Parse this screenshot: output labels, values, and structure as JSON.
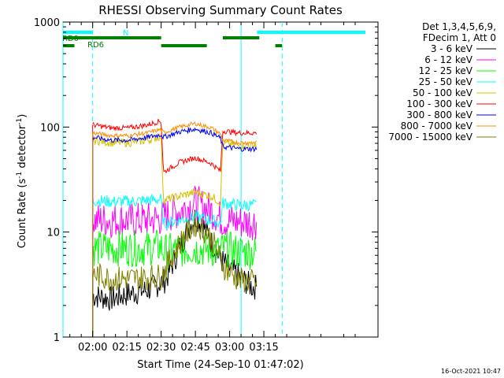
{
  "chart_data": {
    "type": "line",
    "title": "RHESSI Observing Summary Count Rates",
    "xlabel": "Start Time (24-Sep-10 01:47:02)",
    "ylabel_main": "Count Rate (s",
    "ylabel_sup1": "-1",
    "ylabel_mid": " detector",
    "ylabel_sup2": "-1",
    "ylabel_end": ")",
    "y_scale": "log",
    "ylim": [
      1,
      1000
    ],
    "xlim_min": [
      107,
      245
    ],
    "x_ticks": [
      {
        "min": 120,
        "label": "02:00"
      },
      {
        "min": 135,
        "label": "02:15"
      },
      {
        "min": 150,
        "label": "02:30"
      },
      {
        "min": 165,
        "label": "02:45"
      },
      {
        "min": 180,
        "label": "03:00"
      },
      {
        "min": 195,
        "label": "03:15"
      }
    ],
    "y_ticks": [
      {
        "value": 1,
        "label": "1"
      },
      {
        "value": 10,
        "label": "10"
      },
      {
        "value": 100,
        "label": "100"
      },
      {
        "value": 1000,
        "label": "1000"
      }
    ],
    "legend_header": [
      "Det 1,3,4,5,6,9,",
      "FDecim 1, Att 0"
    ],
    "legend_placement": "right",
    "grid": false,
    "series": [
      {
        "name": "3 - 6 keV",
        "color": "#000000",
        "data": [
          [
            120,
            2.5
          ],
          [
            128,
            2.3
          ],
          [
            136,
            2.6
          ],
          [
            144,
            2.8
          ],
          [
            152,
            3.5
          ],
          [
            158,
            7
          ],
          [
            162,
            11
          ],
          [
            165,
            14
          ],
          [
            168,
            12
          ],
          [
            172,
            8
          ],
          [
            176,
            5.5
          ],
          [
            180,
            4.5
          ],
          [
            186,
            3.5
          ],
          [
            190,
            3
          ],
          [
            192,
            3
          ]
        ]
      },
      {
        "name": "6 - 12 keV",
        "color": "#ff00ff",
        "data": [
          [
            120,
            13
          ],
          [
            128,
            13
          ],
          [
            136,
            13
          ],
          [
            144,
            13
          ],
          [
            150,
            13.5
          ],
          [
            151,
            14
          ],
          [
            158,
            16
          ],
          [
            165,
            19
          ],
          [
            172,
            16
          ],
          [
            176,
            13.5
          ],
          [
            177,
            13
          ],
          [
            184,
            12.5
          ],
          [
            192,
            12.5
          ]
        ]
      },
      {
        "name": "12 - 25 keV",
        "color": "#00ff00",
        "data": [
          [
            120,
            7
          ],
          [
            128,
            7
          ],
          [
            136,
            7
          ],
          [
            144,
            7
          ],
          [
            150,
            7.3
          ],
          [
            151,
            6.5
          ],
          [
            160,
            6.8
          ],
          [
            165,
            7
          ],
          [
            172,
            6.8
          ],
          [
            176,
            6.5
          ],
          [
            177,
            7
          ],
          [
            184,
            6.5
          ],
          [
            192,
            6.5
          ]
        ]
      },
      {
        "name": "25 - 50 keV",
        "color": "#00ffff",
        "data": [
          [
            120,
            20
          ],
          [
            128,
            19.5
          ],
          [
            136,
            19.5
          ],
          [
            144,
            20
          ],
          [
            150,
            20.5
          ],
          [
            151,
            12
          ],
          [
            158,
            13
          ],
          [
            165,
            14
          ],
          [
            172,
            13
          ],
          [
            176,
            12
          ],
          [
            177,
            19
          ],
          [
            184,
            18
          ],
          [
            192,
            18
          ]
        ]
      },
      {
        "name": "50 - 100 keV",
        "color": "#d4c000",
        "data": [
          [
            120,
            75
          ],
          [
            128,
            71
          ],
          [
            136,
            71
          ],
          [
            144,
            75
          ],
          [
            150,
            82
          ],
          [
            151,
            20
          ],
          [
            158,
            22
          ],
          [
            165,
            24
          ],
          [
            172,
            22
          ],
          [
            176,
            19
          ],
          [
            177,
            70
          ],
          [
            184,
            67
          ],
          [
            192,
            67
          ]
        ]
      },
      {
        "name": "100 - 300 keV",
        "color": "#ff0000",
        "data": [
          [
            120,
            105
          ],
          [
            128,
            98
          ],
          [
            136,
            98
          ],
          [
            144,
            105
          ],
          [
            150,
            115
          ],
          [
            151,
            37
          ],
          [
            158,
            46
          ],
          [
            165,
            51
          ],
          [
            172,
            45
          ],
          [
            176,
            38
          ],
          [
            177,
            92
          ],
          [
            184,
            88
          ],
          [
            192,
            88
          ]
        ]
      },
      {
        "name": "300 - 800 keV",
        "color": "#0000ff",
        "data": [
          [
            120,
            80
          ],
          [
            128,
            75
          ],
          [
            136,
            75
          ],
          [
            144,
            80
          ],
          [
            150,
            85
          ],
          [
            151,
            80
          ],
          [
            158,
            90
          ],
          [
            165,
            96
          ],
          [
            172,
            88
          ],
          [
            176,
            78
          ],
          [
            177,
            65
          ],
          [
            184,
            62
          ],
          [
            192,
            62
          ]
        ]
      },
      {
        "name": "800 - 7000 keV",
        "color": "#ff8c00",
        "data": [
          [
            120,
            88
          ],
          [
            128,
            83
          ],
          [
            136,
            83
          ],
          [
            144,
            88
          ],
          [
            150,
            95
          ],
          [
            151,
            88
          ],
          [
            158,
            100
          ],
          [
            165,
            108
          ],
          [
            172,
            98
          ],
          [
            176,
            86
          ],
          [
            177,
            75
          ],
          [
            184,
            71
          ],
          [
            192,
            71
          ]
        ]
      },
      {
        "name": "7000 - 15000 keV",
        "color": "#808000",
        "data": [
          [
            120,
            4
          ],
          [
            128,
            3.6
          ],
          [
            136,
            3.6
          ],
          [
            144,
            3.7
          ],
          [
            150,
            3.8
          ],
          [
            155,
            6
          ],
          [
            160,
            9
          ],
          [
            165,
            12
          ],
          [
            170,
            10
          ],
          [
            174,
            7
          ],
          [
            178,
            4.5
          ],
          [
            184,
            3.5
          ],
          [
            192,
            3.3
          ]
        ]
      }
    ],
    "annotations": [
      {
        "label": "N",
        "color": "#00ffff",
        "bars_min": [
          [
            107,
            120
          ]
        ]
      },
      {
        "label": "RD0",
        "color": "#008000",
        "bars_min": [
          [
            107,
            150
          ],
          [
            177,
            193
          ]
        ]
      },
      {
        "label": "RD6",
        "color": "#008000",
        "bars_min": [
          [
            107,
            112
          ],
          [
            150,
            170
          ],
          [
            200,
            203
          ]
        ]
      }
    ],
    "vertical_markers": [
      {
        "min": 107,
        "color": "#00ffff",
        "style": "solid"
      },
      {
        "min": 120,
        "color": "#00ffff",
        "style": "dashed"
      },
      {
        "min": 185,
        "color": "#00ffff",
        "style": "solid"
      },
      {
        "min": 203,
        "color": "#00ffff",
        "style": "dashed"
      }
    ],
    "footer_date": "16-Oct-2021 10:47"
  }
}
